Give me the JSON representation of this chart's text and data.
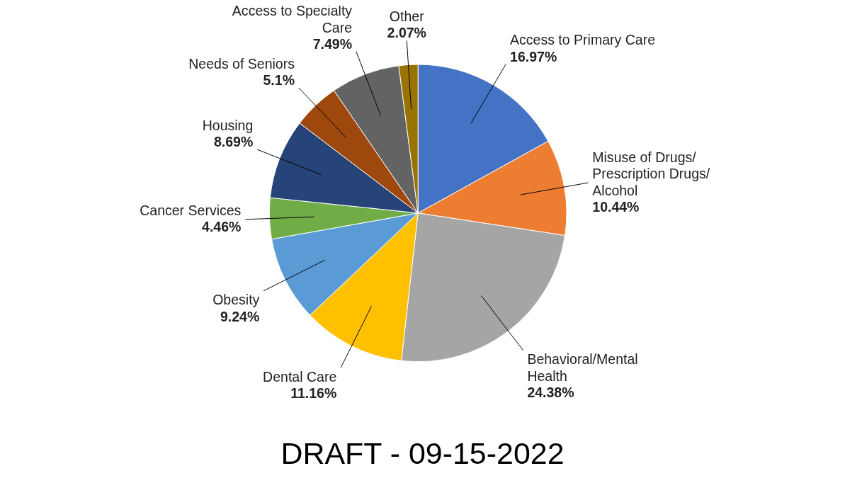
{
  "chart_data": {
    "type": "pie",
    "categories": [
      "Access to Primary Care",
      "Misuse of Drugs/ Prescription Drugs/ Alcohol",
      "Behavioral/Mental Health",
      "Dental Care",
      "Obesity",
      "Cancer Services",
      "Housing",
      "Needs of Seniors",
      "Access to Specialty Care",
      "Other"
    ],
    "values": [
      16.97,
      10.44,
      24.38,
      11.16,
      9.24,
      4.46,
      8.69,
      5.1,
      7.49,
      2.07
    ],
    "colors": [
      "#4472c4",
      "#ed7d31",
      "#a5a5a5",
      "#ffc000",
      "#5b9bd5",
      "#70ad47",
      "#264478",
      "#9e480e",
      "#636363",
      "#997300"
    ],
    "value_labels": [
      "16.97%",
      "10.44%",
      "24.38%",
      "11.16%",
      "9.24%",
      "4.46%",
      "8.69%",
      "5.1%",
      "7.49%",
      "2.07%"
    ],
    "annotations": [
      "DRAFT - 09-15-2022"
    ]
  }
}
